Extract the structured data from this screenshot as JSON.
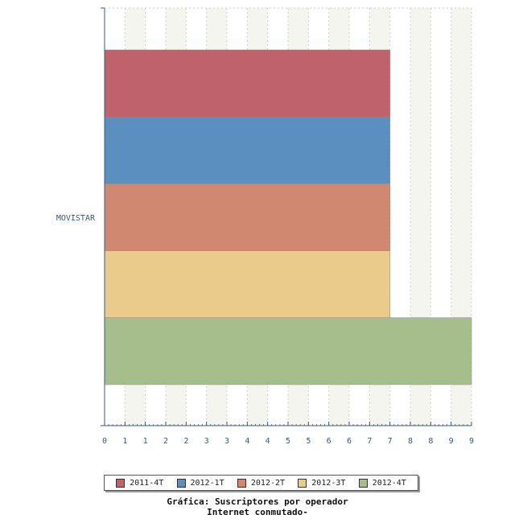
{
  "chart_data": {
    "type": "bar",
    "orientation": "horizontal",
    "categories": [
      "MOVISTAR"
    ],
    "series": [
      {
        "name": "2011-4T",
        "values": [
          7
        ],
        "color": "#c0626b"
      },
      {
        "name": "2012-1T",
        "values": [
          7
        ],
        "color": "#5b8fc0"
      },
      {
        "name": "2012-2T",
        "values": [
          7
        ],
        "color": "#d08870"
      },
      {
        "name": "2012-3T",
        "values": [
          7
        ],
        "color": "#ebcb8c"
      },
      {
        "name": "2012-4T",
        "values": [
          9
        ],
        "color": "#a6bd8c"
      }
    ],
    "x_tick_labels": [
      "0",
      "1",
      "1",
      "2",
      "2",
      "3",
      "3",
      "4",
      "4",
      "5",
      "5",
      "6",
      "6",
      "7",
      "7",
      "8",
      "8",
      "9"
    ],
    "xlim": [
      0,
      9
    ],
    "grid": "vertical-bands",
    "legend_position": "bottom",
    "title_line1": "Gráfica: Suscriptores por operador",
    "title_line2": "Internet conmutado-"
  }
}
